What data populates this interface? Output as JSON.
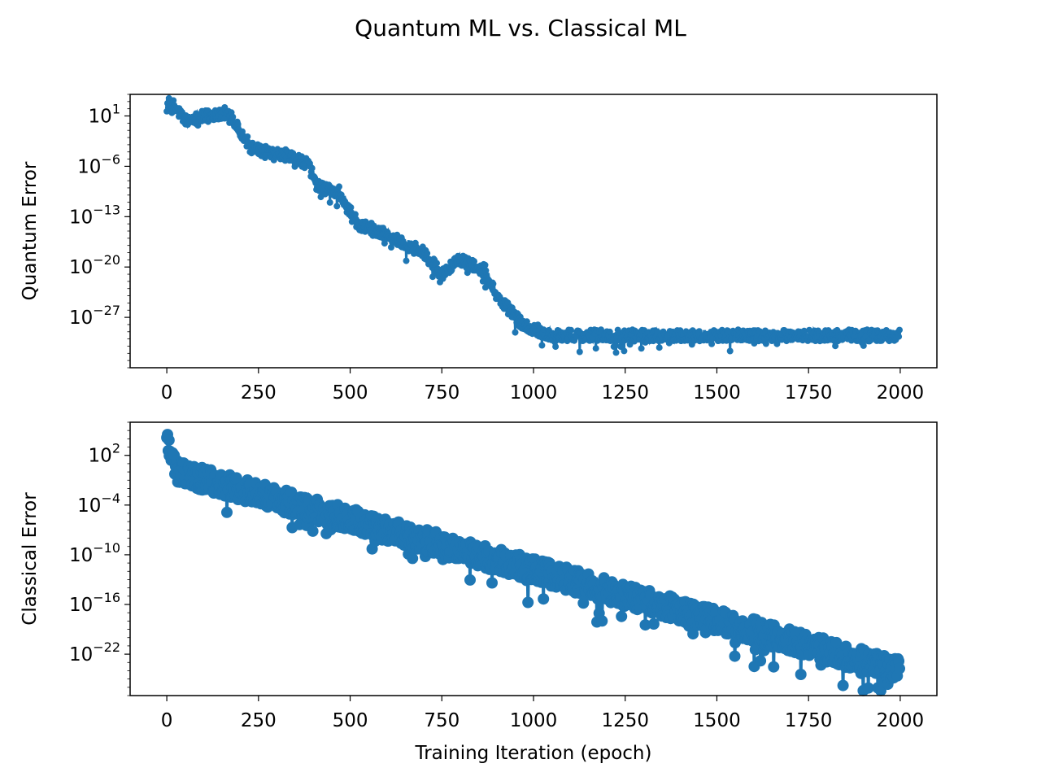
{
  "figure": {
    "suptitle": "Quantum ML vs. Classical ML",
    "color": "#1f77b4"
  },
  "chart_data": [
    {
      "type": "scatter",
      "style": "stem-markers",
      "ylabel": "Quantum Error",
      "xlabel": "",
      "yscale": "log",
      "xlim": [
        -100,
        2100
      ],
      "ylim_exp": [
        -34,
        4
      ],
      "xticks": [
        0,
        250,
        500,
        750,
        1000,
        1250,
        1500,
        1750,
        2000
      ],
      "yticks": [
        {
          "exp": 1,
          "label": "10",
          "sup": "1"
        },
        {
          "exp": -6,
          "label": "10",
          "sup": "−6"
        },
        {
          "exp": -13,
          "label": "10",
          "sup": "−13"
        },
        {
          "exp": -20,
          "label": "10",
          "sup": "−20"
        },
        {
          "exp": -27,
          "label": "10",
          "sup": "−27"
        }
      ],
      "trend_log10": [
        [
          0,
          3.5
        ],
        [
          50,
          0.5
        ],
        [
          170,
          1.5
        ],
        [
          230,
          -3.5
        ],
        [
          330,
          -4.5
        ],
        [
          380,
          -5.5
        ],
        [
          420,
          -9
        ],
        [
          470,
          -9.5
        ],
        [
          520,
          -14
        ],
        [
          580,
          -15
        ],
        [
          700,
          -18
        ],
        [
          750,
          -21
        ],
        [
          800,
          -19
        ],
        [
          870,
          -20.5
        ],
        [
          900,
          -24
        ],
        [
          970,
          -28
        ],
        [
          1050,
          -29.5
        ],
        [
          2000,
          -29.5
        ]
      ],
      "noise": 0.8,
      "n_points": 2000,
      "marker_radius": 4
    },
    {
      "type": "scatter",
      "style": "stem-markers",
      "ylabel": "Classical Error",
      "xlabel": "Training Iteration (epoch)",
      "yscale": "log",
      "xlim": [
        -100,
        2100
      ],
      "ylim_exp": [
        -27,
        6
      ],
      "xticks": [
        0,
        250,
        500,
        750,
        1000,
        1250,
        1500,
        1750,
        2000
      ],
      "yticks": [
        {
          "exp": 2,
          "label": "10",
          "sup": "2"
        },
        {
          "exp": -4,
          "label": "10",
          "sup": "−4"
        },
        {
          "exp": -10,
          "label": "10",
          "sup": "−10"
        },
        {
          "exp": -16,
          "label": "10",
          "sup": "−16"
        },
        {
          "exp": -22,
          "label": "10",
          "sup": "−22"
        }
      ],
      "trend_log10": [
        [
          0,
          4
        ],
        [
          30,
          0
        ],
        [
          2000,
          -24
        ]
      ],
      "noise": 1.4,
      "n_points": 2000,
      "marker_radius": 7
    }
  ]
}
